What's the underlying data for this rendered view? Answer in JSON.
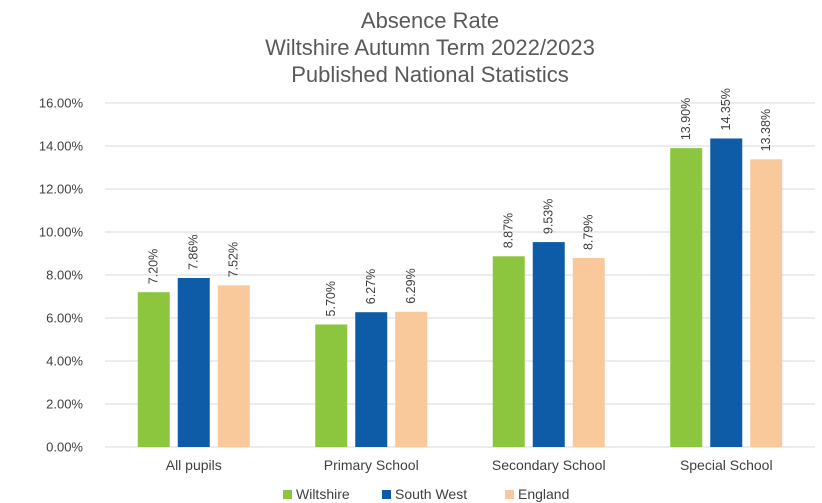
{
  "chart_data": {
    "type": "bar",
    "title": [
      "Absence Rate",
      "Wiltshire Autumn Term 2022/2023",
      "Published National Statistics"
    ],
    "categories": [
      "All pupils",
      "Primary School",
      "Secondary School",
      "Special School"
    ],
    "series": [
      {
        "name": "Wiltshire",
        "color": "#8cc63f",
        "values": [
          7.2,
          5.7,
          8.87,
          13.9
        ],
        "labels": [
          "7.20%",
          "5.70%",
          "8.87%",
          "13.90%"
        ]
      },
      {
        "name": "South West",
        "color": "#0e5ca8",
        "values": [
          7.86,
          6.27,
          9.53,
          14.35
        ],
        "labels": [
          "7.86%",
          "6.27%",
          "9.53%",
          "14.35%"
        ]
      },
      {
        "name": "England",
        "color": "#f9c89b",
        "values": [
          7.52,
          6.29,
          8.79,
          13.38
        ],
        "labels": [
          "7.52%",
          "6.29%",
          "8.79%",
          "13.38%"
        ]
      }
    ],
    "y_ticks": [
      "0.00%",
      "2.00%",
      "4.00%",
      "6.00%",
      "8.00%",
      "10.00%",
      "12.00%",
      "14.00%",
      "16.00%"
    ],
    "ylim": [
      0,
      16
    ],
    "grid": true,
    "legend_position": "bottom",
    "xlabel": "",
    "ylabel": ""
  }
}
